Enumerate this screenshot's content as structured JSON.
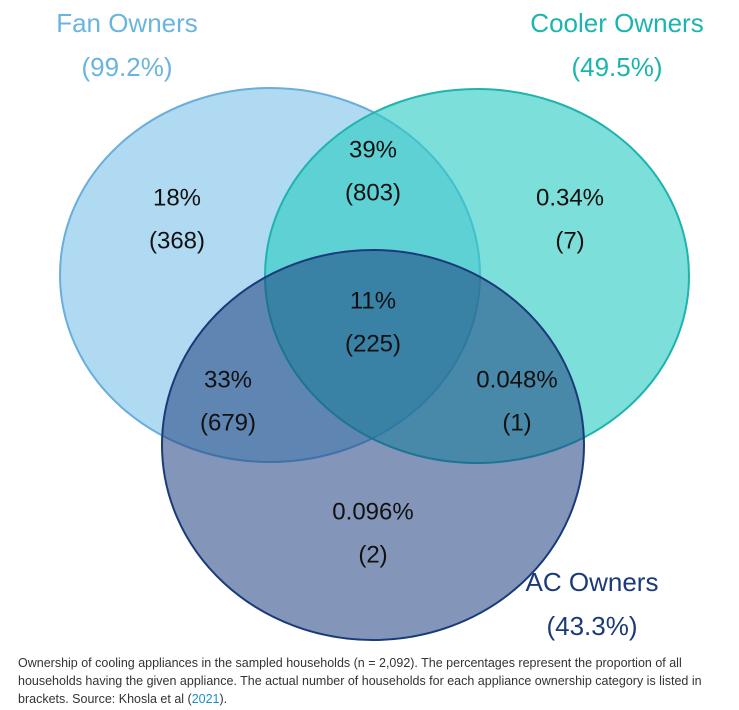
{
  "sets": [
    {
      "name": "Fan Owners",
      "share": "(99.2%)"
    },
    {
      "name": "Cooler Owners",
      "share": "(49.5%)"
    },
    {
      "name": "AC Owners",
      "share": "(43.3%)"
    }
  ],
  "regions": [
    {
      "percent": "18%",
      "count": "(368)"
    },
    {
      "percent": "39%",
      "count": "(803)"
    },
    {
      "percent": "0.34%",
      "count": "(7)"
    },
    {
      "percent": "11%",
      "count": "(225)"
    },
    {
      "percent": "33%",
      "count": "(679)"
    },
    {
      "percent": "0.048%",
      "count": "(1)"
    },
    {
      "percent": "0.096%",
      "count": "(2)"
    }
  ],
  "caption": {
    "text": "Ownership of cooling appliances in the sampled households (n = 2,092). The percentages represent the proportion of all households having the given appliance. The actual number of households for each appliance ownership category is listed in brackets. Source: Khosla et al (",
    "link": "2021",
    "end": ")."
  }
}
